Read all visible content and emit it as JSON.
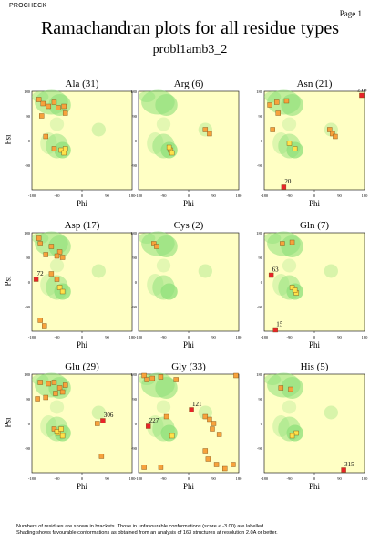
{
  "header": {
    "program": "PROCHECK",
    "page": "Page 1"
  },
  "title": "Ramachandran plots for all residue types",
  "subtitle": "probl1amb3_2",
  "footer": {
    "line1": "Numbers of residues are shown in brackets. Those in unfavourable conformations (score < -3.00) are labelled.",
    "line2": "Shading shows favourable conformations as obtained from an analysis of 163 structures at resolution 2.0A or better."
  },
  "chart_data": [
    {
      "type": "scatter",
      "title": "Ala (31)",
      "xlabel": "Phi",
      "ylabel": "Psi",
      "xlim": [
        -180,
        180
      ],
      "ylim": [
        -180,
        180
      ],
      "xticks": [
        "-180",
        "-90",
        "0",
        "90",
        "180"
      ],
      "yticks": [
        "180",
        "90",
        "0",
        "-90"
      ],
      "points": [
        [
          -155,
          150
        ],
        [
          -140,
          135
        ],
        [
          -120,
          125
        ],
        [
          -100,
          140
        ],
        [
          -85,
          120
        ],
        [
          -65,
          125
        ],
        [
          -145,
          90
        ],
        [
          -60,
          100
        ],
        [
          -130,
          15
        ],
        [
          -100,
          -30
        ],
        [
          -75,
          -35
        ],
        [
          -65,
          -45
        ],
        [
          -60,
          -30
        ]
      ],
      "labels": []
    },
    {
      "type": "scatter",
      "title": "Arg (6)",
      "xlabel": "Phi",
      "ylabel": "Psi",
      "xlim": [
        -180,
        180
      ],
      "ylim": [
        -180,
        180
      ],
      "xticks": [
        "-180",
        "-90",
        "0",
        "90",
        "180"
      ],
      "yticks": [
        "180",
        "90",
        "0",
        "-90"
      ],
      "points": [
        [
          -65,
          -35
        ],
        [
          -60,
          -45
        ],
        [
          -70,
          -25
        ],
        [
          60,
          40
        ],
        [
          75,
          25
        ]
      ],
      "labels": []
    },
    {
      "type": "scatter",
      "title": "Asn (21)",
      "xlabel": "Phi",
      "ylabel": "Psi",
      "xlim": [
        -180,
        180
      ],
      "ylim": [
        -180,
        180
      ],
      "xticks": [
        "-180",
        "-90",
        "0",
        "90",
        "180"
      ],
      "yticks": [
        "180",
        "90",
        "0",
        "-90"
      ],
      "points": [
        [
          -160,
          130
        ],
        [
          -135,
          140
        ],
        [
          -100,
          145
        ],
        [
          -130,
          100
        ],
        [
          -150,
          40
        ],
        [
          -90,
          -10
        ],
        [
          -70,
          -30
        ],
        [
          55,
          40
        ],
        [
          65,
          25
        ],
        [
          75,
          15
        ],
        [
          -110,
          -170
        ],
        [
          170,
          165
        ]
      ],
      "labels": [
        {
          "text": "20",
          "x": -110,
          "y": -170
        },
        {
          "text": "218",
          "x": 170,
          "y": 165
        }
      ]
    },
    {
      "type": "scatter",
      "title": "Asp (17)",
      "xlabel": "Phi",
      "ylabel": "Psi",
      "xlim": [
        -180,
        180
      ],
      "ylim": [
        -180,
        180
      ],
      "xticks": [
        "-180",
        "-90",
        "0",
        "90",
        "180"
      ],
      "yticks": [
        "180",
        "90",
        "0",
        "-90"
      ],
      "points": [
        [
          -155,
          160
        ],
        [
          -150,
          140
        ],
        [
          -110,
          130
        ],
        [
          -80,
          110
        ],
        [
          -130,
          100
        ],
        [
          -90,
          95
        ],
        [
          -70,
          90
        ],
        [
          -110,
          30
        ],
        [
          -90,
          10
        ],
        [
          -80,
          -20
        ],
        [
          -70,
          -35
        ],
        [
          -165,
          10
        ],
        [
          -150,
          -140
        ],
        [
          -135,
          -160
        ]
      ],
      "labels": [
        {
          "text": "72",
          "x": -165,
          "y": 10
        }
      ]
    },
    {
      "type": "scatter",
      "title": "Cys (2)",
      "xlabel": "Phi",
      "ylabel": "Psi",
      "xlim": [
        -180,
        180
      ],
      "ylim": [
        -180,
        180
      ],
      "xticks": [
        "-180",
        "-90",
        "0",
        "90",
        "180"
      ],
      "yticks": [
        "180",
        "90",
        "0",
        "-90"
      ],
      "points": [
        [
          -125,
          140
        ],
        [
          -115,
          130
        ]
      ],
      "labels": []
    },
    {
      "type": "scatter",
      "title": "Gln (7)",
      "xlabel": "Phi",
      "ylabel": "Psi",
      "xlim": [
        -180,
        180
      ],
      "ylim": [
        -180,
        180
      ],
      "xticks": [
        "-180",
        "-90",
        "0",
        "90",
        "180"
      ],
      "yticks": [
        "180",
        "90",
        "0",
        "-90"
      ],
      "points": [
        [
          -115,
          140
        ],
        [
          -80,
          145
        ],
        [
          -80,
          -20
        ],
        [
          -65,
          -40
        ],
        [
          -70,
          -30
        ],
        [
          -155,
          25
        ],
        [
          -140,
          -175
        ]
      ],
      "labels": [
        {
          "text": "63",
          "x": -155,
          "y": 25
        },
        {
          "text": "15",
          "x": -140,
          "y": -175
        }
      ]
    },
    {
      "type": "scatter",
      "title": "Glu (29)",
      "xlabel": "Phi",
      "ylabel": "Psi",
      "xlim": [
        -180,
        180
      ],
      "ylim": [
        -180,
        180
      ],
      "xticks": [
        "-180",
        "-90",
        "0",
        "90",
        "180"
      ],
      "yticks": [
        "180",
        "90",
        "0",
        "-90"
      ],
      "points": [
        [
          -150,
          150
        ],
        [
          -120,
          145
        ],
        [
          -100,
          150
        ],
        [
          -80,
          130
        ],
        [
          -60,
          140
        ],
        [
          -95,
          110
        ],
        [
          -70,
          115
        ],
        [
          -160,
          90
        ],
        [
          -130,
          95
        ],
        [
          -100,
          -20
        ],
        [
          -85,
          -35
        ],
        [
          -70,
          -45
        ],
        [
          -90,
          -30
        ],
        [
          -75,
          -20
        ],
        [
          55,
          0
        ],
        [
          75,
          10
        ],
        [
          70,
          -120
        ]
      ],
      "labels": [
        {
          "text": "306",
          "x": 75,
          "y": 10
        }
      ]
    },
    {
      "type": "scatter",
      "title": "Gly (33)",
      "xlabel": "Phi",
      "ylabel": "Psi",
      "xlim": [
        -180,
        180
      ],
      "ylim": [
        -180,
        180
      ],
      "xticks": [
        "-180",
        "-90",
        "0",
        "90",
        "180"
      ],
      "yticks": [
        "180",
        "90",
        "0",
        "-90"
      ],
      "points": [
        [
          -160,
          175
        ],
        [
          -130,
          165
        ],
        [
          -150,
          160
        ],
        [
          -100,
          170
        ],
        [
          -45,
          160
        ],
        [
          -145,
          -10
        ],
        [
          -80,
          25
        ],
        [
          -60,
          -45
        ],
        [
          10,
          50
        ],
        [
          60,
          25
        ],
        [
          75,
          15
        ],
        [
          90,
          0
        ],
        [
          85,
          -20
        ],
        [
          110,
          -40
        ],
        [
          60,
          -100
        ],
        [
          70,
          -130
        ],
        [
          100,
          -150
        ],
        [
          130,
          -165
        ],
        [
          160,
          -150
        ],
        [
          -160,
          -160
        ],
        [
          -100,
          -160
        ],
        [
          170,
          175
        ]
      ],
      "labels": [
        {
          "text": "227",
          "x": -145,
          "y": -10
        },
        {
          "text": "121",
          "x": 10,
          "y": 50
        }
      ]
    },
    {
      "type": "scatter",
      "title": "His (5)",
      "xlabel": "Phi",
      "ylabel": "Psi",
      "xlim": [
        -180,
        180
      ],
      "ylim": [
        -180,
        180
      ],
      "xticks": [
        "-180",
        "-90",
        "0",
        "90",
        "180"
      ],
      "yticks": [
        "180",
        "90",
        "0",
        "-90"
      ],
      "points": [
        [
          -120,
          130
        ],
        [
          -85,
          125
        ],
        [
          -65,
          -35
        ],
        [
          -80,
          -45
        ],
        [
          105,
          -170
        ]
      ],
      "labels": [
        {
          "text": "315",
          "x": 105,
          "y": -170
        }
      ]
    }
  ]
}
